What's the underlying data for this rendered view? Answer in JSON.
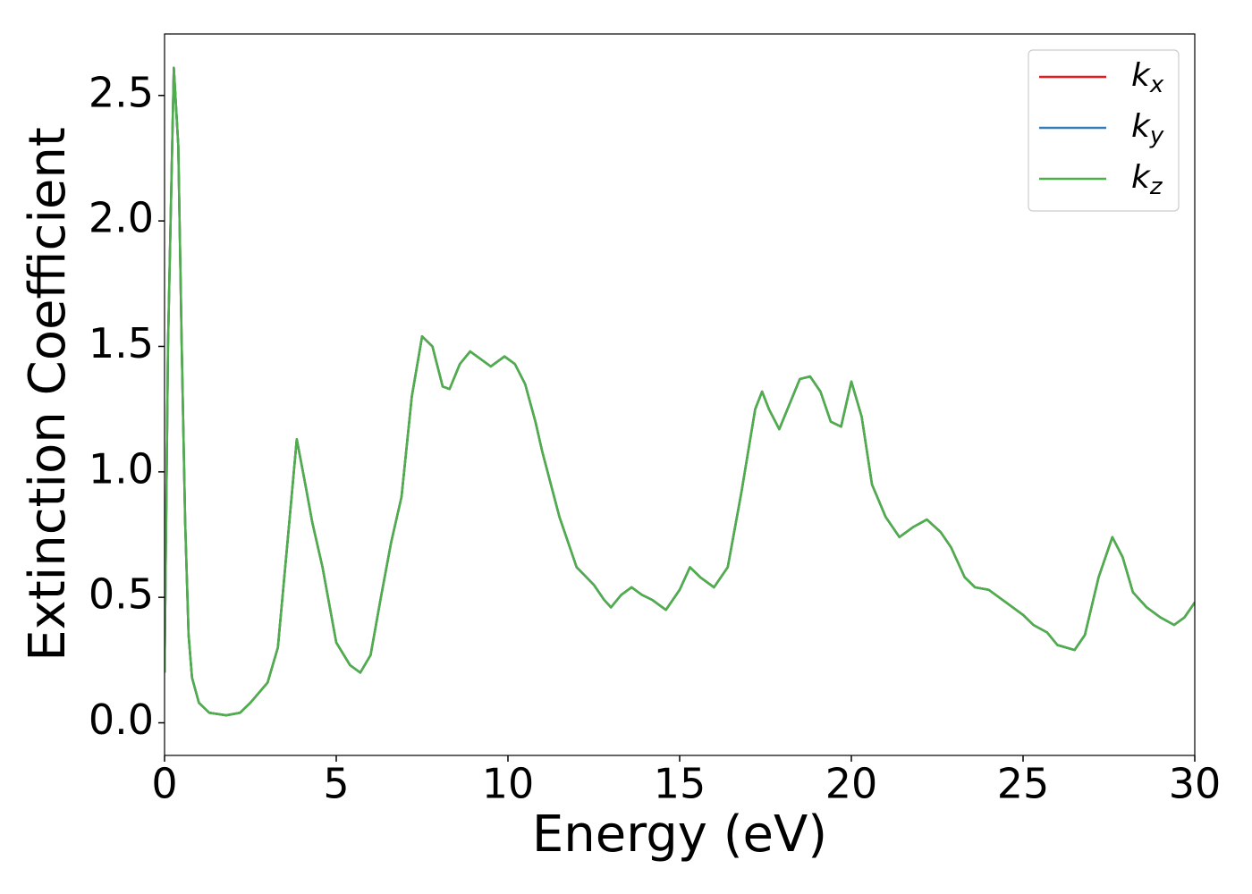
{
  "chart_data": {
    "type": "line",
    "x_label": "Energy (eV)",
    "y_label": "Extinction Coefficient",
    "x": [
      0,
      0.1,
      0.27,
      0.4,
      0.5,
      0.6,
      0.7,
      0.8,
      1.0,
      1.3,
      1.8,
      2.2,
      2.5,
      3.0,
      3.3,
      3.6,
      3.85,
      4.1,
      4.3,
      4.6,
      5.0,
      5.4,
      5.7,
      6.0,
      6.3,
      6.6,
      6.9,
      7.2,
      7.5,
      7.8,
      8.1,
      8.3,
      8.6,
      8.9,
      9.2,
      9.5,
      9.9,
      10.2,
      10.5,
      10.8,
      11.0,
      11.5,
      12.0,
      12.5,
      12.8,
      13.0,
      13.3,
      13.6,
      13.9,
      14.2,
      14.6,
      15.0,
      15.3,
      15.6,
      16.0,
      16.4,
      16.8,
      17.2,
      17.4,
      17.6,
      17.9,
      18.2,
      18.5,
      18.8,
      19.1,
      19.4,
      19.7,
      20.0,
      20.3,
      20.6,
      21.0,
      21.4,
      21.8,
      22.2,
      22.6,
      22.9,
      23.3,
      23.6,
      24.0,
      24.5,
      25.0,
      25.3,
      25.7,
      26.0,
      26.5,
      26.8,
      27.2,
      27.6,
      27.9,
      28.2,
      28.6,
      29.0,
      29.4,
      29.7,
      30.0
    ],
    "series": [
      {
        "name": "kx",
        "color": "#e41a1c",
        "values": [
          0.2,
          1.5,
          2.61,
          2.3,
          1.5,
          0.8,
          0.35,
          0.18,
          0.08,
          0.04,
          0.03,
          0.04,
          0.08,
          0.16,
          0.3,
          0.75,
          1.13,
          0.95,
          0.8,
          0.62,
          0.32,
          0.23,
          0.2,
          0.27,
          0.5,
          0.72,
          0.9,
          1.3,
          1.54,
          1.5,
          1.34,
          1.33,
          1.43,
          1.48,
          1.45,
          1.42,
          1.46,
          1.43,
          1.35,
          1.2,
          1.08,
          0.82,
          0.62,
          0.55,
          0.49,
          0.46,
          0.51,
          0.54,
          0.51,
          0.49,
          0.45,
          0.53,
          0.62,
          0.58,
          0.54,
          0.62,
          0.92,
          1.25,
          1.32,
          1.25,
          1.17,
          1.27,
          1.37,
          1.38,
          1.32,
          1.2,
          1.18,
          1.36,
          1.22,
          0.95,
          0.82,
          0.74,
          0.78,
          0.81,
          0.76,
          0.7,
          0.58,
          0.54,
          0.53,
          0.48,
          0.43,
          0.39,
          0.36,
          0.31,
          0.29,
          0.35,
          0.58,
          0.74,
          0.66,
          0.52,
          0.46,
          0.42,
          0.39,
          0.42,
          0.48
        ]
      },
      {
        "name": "ky",
        "color": "#377eb8",
        "values": [
          0.2,
          1.5,
          2.61,
          2.3,
          1.5,
          0.8,
          0.35,
          0.18,
          0.08,
          0.04,
          0.03,
          0.04,
          0.08,
          0.16,
          0.3,
          0.75,
          1.13,
          0.95,
          0.8,
          0.62,
          0.32,
          0.23,
          0.2,
          0.27,
          0.5,
          0.72,
          0.9,
          1.3,
          1.54,
          1.5,
          1.34,
          1.33,
          1.43,
          1.48,
          1.45,
          1.42,
          1.46,
          1.43,
          1.35,
          1.2,
          1.08,
          0.82,
          0.62,
          0.55,
          0.49,
          0.46,
          0.51,
          0.54,
          0.51,
          0.49,
          0.45,
          0.53,
          0.62,
          0.58,
          0.54,
          0.62,
          0.92,
          1.25,
          1.32,
          1.25,
          1.17,
          1.27,
          1.37,
          1.38,
          1.32,
          1.2,
          1.18,
          1.36,
          1.22,
          0.95,
          0.82,
          0.74,
          0.78,
          0.81,
          0.76,
          0.7,
          0.58,
          0.54,
          0.53,
          0.48,
          0.43,
          0.39,
          0.36,
          0.31,
          0.29,
          0.35,
          0.58,
          0.74,
          0.66,
          0.52,
          0.46,
          0.42,
          0.39,
          0.42,
          0.48
        ]
      },
      {
        "name": "kz",
        "color": "#4daf4a",
        "values": [
          0.2,
          1.5,
          2.61,
          2.3,
          1.5,
          0.8,
          0.35,
          0.18,
          0.08,
          0.04,
          0.03,
          0.04,
          0.08,
          0.16,
          0.3,
          0.75,
          1.13,
          0.95,
          0.8,
          0.62,
          0.32,
          0.23,
          0.2,
          0.27,
          0.5,
          0.72,
          0.9,
          1.3,
          1.54,
          1.5,
          1.34,
          1.33,
          1.43,
          1.48,
          1.45,
          1.42,
          1.46,
          1.43,
          1.35,
          1.2,
          1.08,
          0.82,
          0.62,
          0.55,
          0.49,
          0.46,
          0.51,
          0.54,
          0.51,
          0.49,
          0.45,
          0.53,
          0.62,
          0.58,
          0.54,
          0.62,
          0.92,
          1.25,
          1.32,
          1.25,
          1.17,
          1.27,
          1.37,
          1.38,
          1.32,
          1.2,
          1.18,
          1.36,
          1.22,
          0.95,
          0.82,
          0.74,
          0.78,
          0.81,
          0.76,
          0.7,
          0.58,
          0.54,
          0.53,
          0.48,
          0.43,
          0.39,
          0.36,
          0.31,
          0.29,
          0.35,
          0.58,
          0.74,
          0.66,
          0.52,
          0.46,
          0.42,
          0.39,
          0.42,
          0.48
        ]
      }
    ],
    "xlim": [
      0,
      30
    ],
    "xticks": [
      0,
      5,
      10,
      15,
      20,
      25,
      30
    ],
    "ylim": [
      -0.13,
      2.745
    ],
    "yticks": [
      {
        "value": 0,
        "label": "0.0"
      },
      0.5,
      {
        "value": 1,
        "label": "1.0"
      },
      1.5,
      {
        "value": 2,
        "label": "2.0"
      },
      2.5
    ],
    "grid": false,
    "legend": "upper right"
  }
}
